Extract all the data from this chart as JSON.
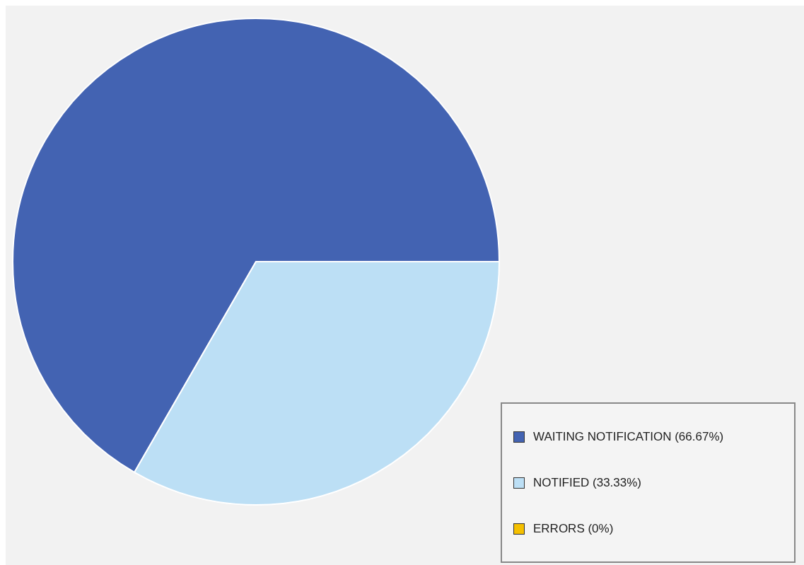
{
  "chart_data": {
    "type": "pie",
    "categories": [
      "WAITING NOTIFICATION (66.67%)",
      "NOTIFIED (33.33%)",
      "ERRORS (0%)"
    ],
    "values": [
      66.67,
      33.33,
      0
    ],
    "colors": [
      "#4363b2",
      "#bcdff5",
      "#f5c000"
    ],
    "legend": "bottom right"
  }
}
